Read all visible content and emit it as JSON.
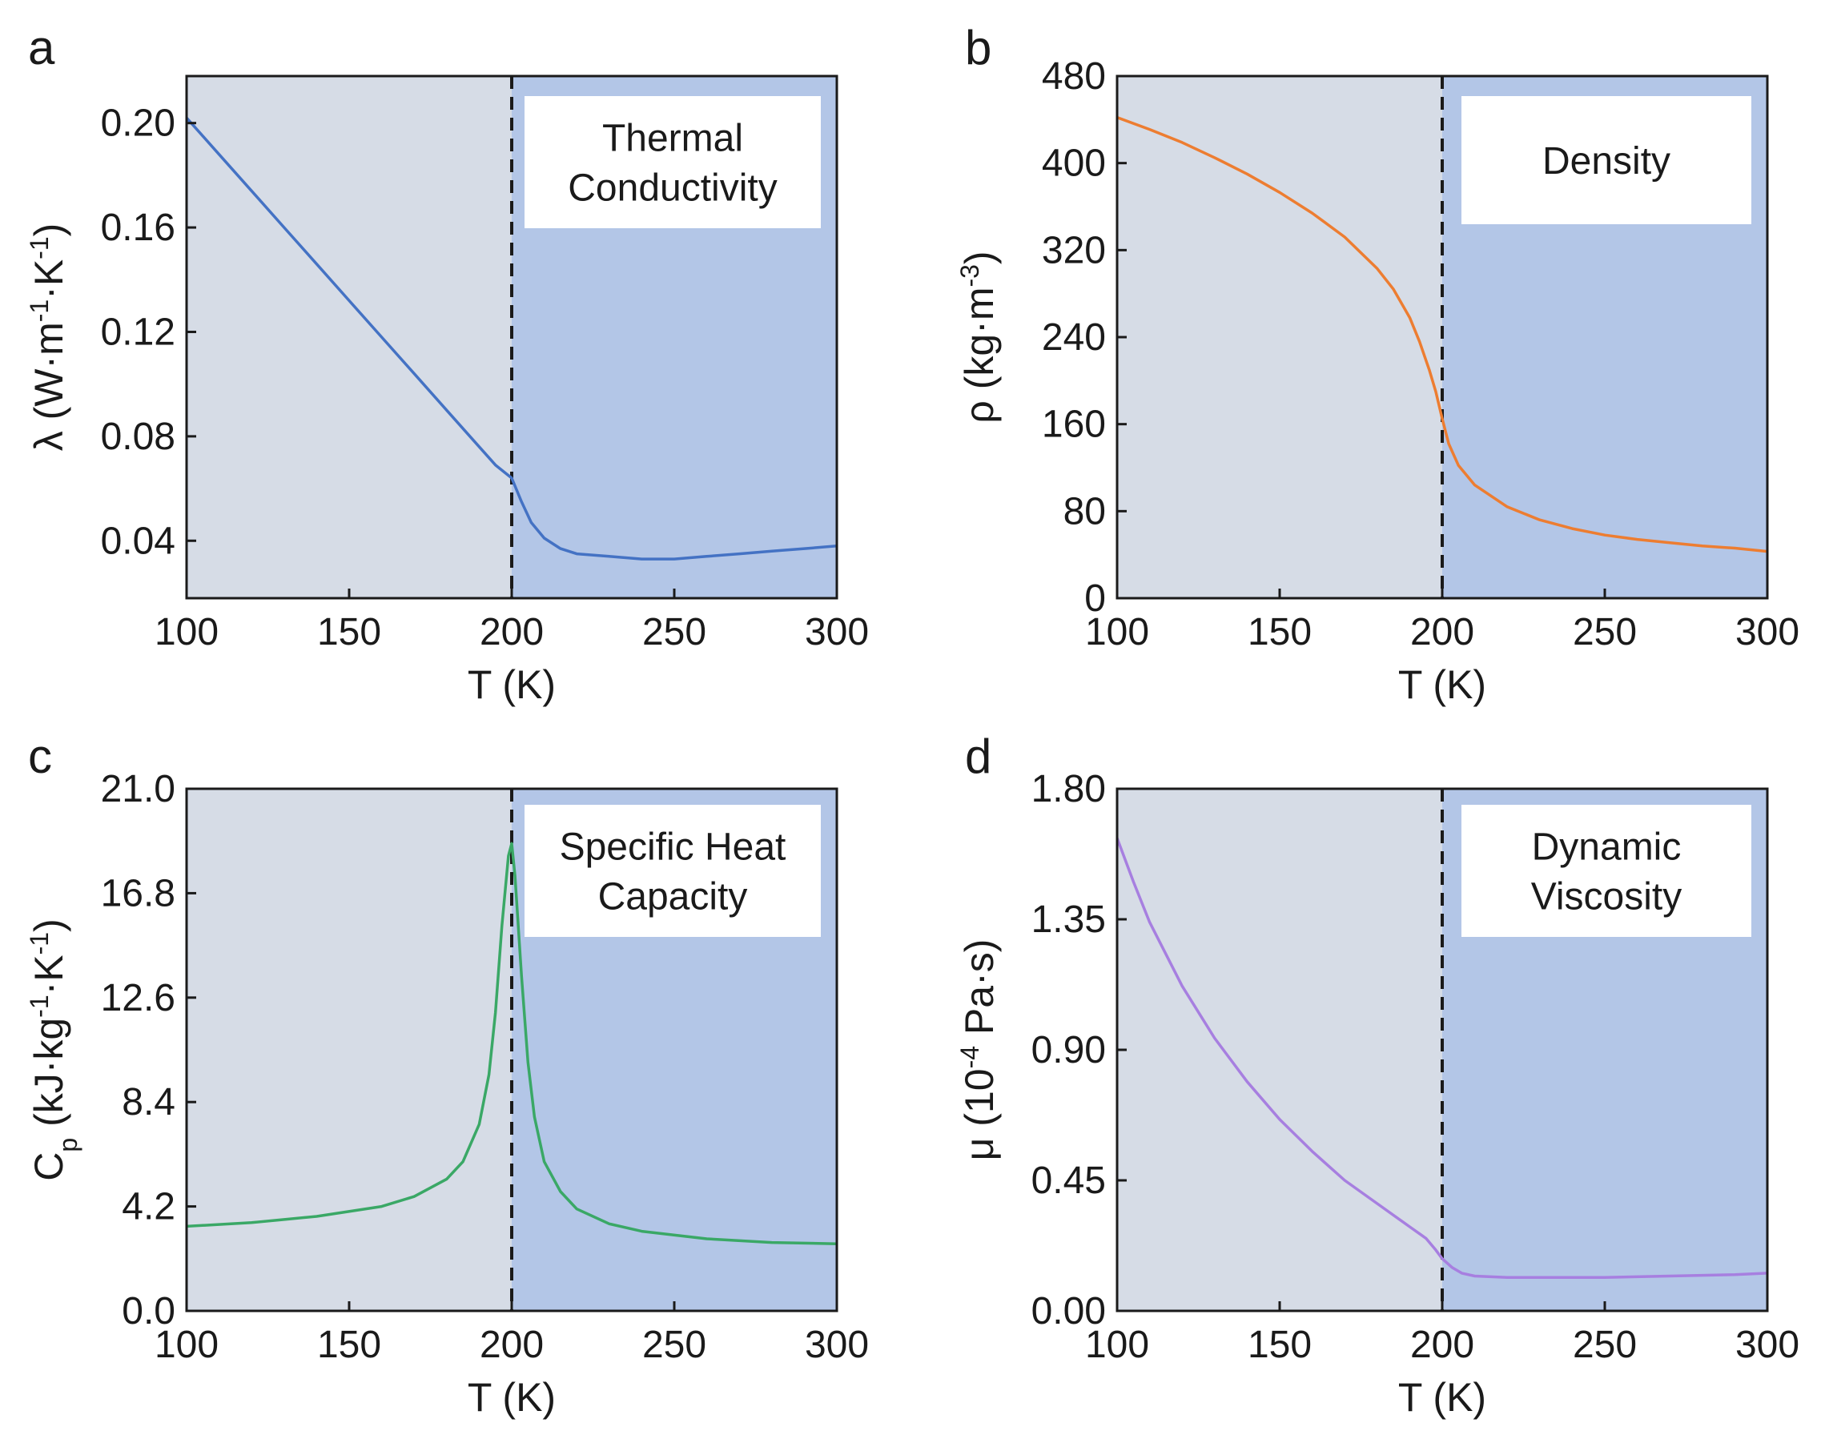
{
  "colors": {
    "region_left": "#d6dce6",
    "region_right": "#b3c6e7",
    "divider": "#1a1a1a"
  },
  "chart_data": [
    {
      "panel": "a",
      "type": "line",
      "annotation": [
        "Thermal",
        "Conductivity"
      ],
      "xlabel": "T (K)",
      "ylabel": "λ (W·m⁻¹·K⁻¹)",
      "xlim": [
        100,
        300
      ],
      "ylim": [
        0.018,
        0.218
      ],
      "xticks": [
        "100",
        "150",
        "200",
        "250",
        "300"
      ],
      "yticks": [
        "0.04",
        "0.08",
        "0.12",
        "0.16",
        "0.20"
      ],
      "divider_x": 200,
      "color": "#4472c4",
      "series": [
        {
          "x": [
            100,
            110,
            120,
            130,
            140,
            150,
            160,
            170,
            180,
            190,
            195,
            200,
            203,
            206,
            210,
            215,
            220,
            230,
            240,
            250,
            260,
            270,
            280,
            290,
            300
          ],
          "values": [
            0.202,
            0.188,
            0.174,
            0.16,
            0.146,
            0.132,
            0.118,
            0.104,
            0.09,
            0.076,
            0.069,
            0.064,
            0.055,
            0.047,
            0.041,
            0.037,
            0.035,
            0.034,
            0.033,
            0.033,
            0.034,
            0.035,
            0.036,
            0.037,
            0.038
          ]
        }
      ]
    },
    {
      "panel": "b",
      "type": "line",
      "annotation": [
        "Density"
      ],
      "xlabel": "T (K)",
      "ylabel": "ρ (kg·m⁻³)",
      "xlim": [
        100,
        300
      ],
      "ylim": [
        0,
        480
      ],
      "xticks": [
        "100",
        "150",
        "200",
        "250",
        "300"
      ],
      "yticks": [
        "0",
        "80",
        "160",
        "240",
        "320",
        "400",
        "480"
      ],
      "divider_x": 200,
      "color": "#ed7d31",
      "series": [
        {
          "x": [
            100,
            110,
            120,
            130,
            140,
            150,
            160,
            170,
            180,
            185,
            190,
            193,
            196,
            198,
            200,
            202,
            205,
            210,
            220,
            230,
            240,
            250,
            260,
            270,
            280,
            290,
            300
          ],
          "values": [
            442,
            431,
            419,
            405,
            390,
            373,
            354,
            332,
            303,
            284,
            258,
            236,
            210,
            190,
            165,
            142,
            122,
            104,
            84,
            72,
            64,
            58,
            54,
            51,
            48,
            46,
            43
          ]
        }
      ]
    },
    {
      "panel": "c",
      "type": "line",
      "annotation": [
        "Specific Heat",
        "Capacity"
      ],
      "xlabel": "T (K)",
      "ylabel": "Cp (kJ·kg⁻¹·K⁻¹)",
      "xlim": [
        100,
        300
      ],
      "ylim": [
        0,
        21
      ],
      "xticks": [
        "100",
        "150",
        "200",
        "250",
        "300"
      ],
      "yticks": [
        "0.0",
        "4.2",
        "8.4",
        "12.6",
        "16.8",
        "21.0"
      ],
      "divider_x": 200,
      "color": "#3aa866",
      "series": [
        {
          "x": [
            100,
            120,
            140,
            160,
            170,
            180,
            185,
            190,
            193,
            195,
            197,
            199,
            200,
            201,
            203,
            205,
            207,
            210,
            215,
            220,
            230,
            240,
            260,
            280,
            300
          ],
          "values": [
            3.4,
            3.55,
            3.8,
            4.2,
            4.6,
            5.3,
            6.0,
            7.5,
            9.5,
            12.0,
            15.5,
            18.3,
            18.8,
            17.5,
            13.5,
            10.0,
            7.8,
            6.0,
            4.8,
            4.1,
            3.5,
            3.2,
            2.9,
            2.75,
            2.7
          ]
        }
      ]
    },
    {
      "panel": "d",
      "type": "line",
      "annotation": [
        "Dynamic",
        "Viscosity"
      ],
      "xlabel": "T (K)",
      "ylabel": "μ (10⁻⁴ Pa·s)",
      "xlim": [
        100,
        300
      ],
      "ylim": [
        0,
        1.8
      ],
      "xticks": [
        "100",
        "150",
        "200",
        "250",
        "300"
      ],
      "yticks": [
        "0.00",
        "0.45",
        "0.90",
        "1.35",
        "1.80"
      ],
      "divider_x": 200,
      "color": "#a77fe0",
      "series": [
        {
          "x": [
            100,
            105,
            110,
            120,
            130,
            140,
            150,
            160,
            170,
            180,
            190,
            195,
            198,
            200,
            203,
            206,
            210,
            220,
            230,
            250,
            270,
            290,
            300
          ],
          "values": [
            1.63,
            1.48,
            1.34,
            1.12,
            0.94,
            0.79,
            0.66,
            0.55,
            0.45,
            0.37,
            0.29,
            0.25,
            0.21,
            0.18,
            0.15,
            0.13,
            0.12,
            0.115,
            0.115,
            0.115,
            0.12,
            0.125,
            0.13
          ]
        }
      ]
    }
  ]
}
